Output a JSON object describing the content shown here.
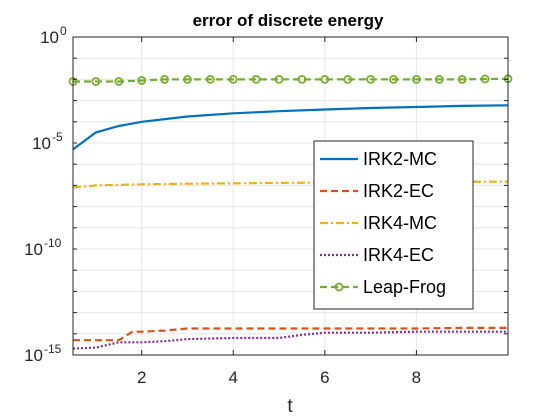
{
  "chart_data": {
    "type": "line",
    "title": "error of discrete energy",
    "xlabel": "t",
    "ylabel": "",
    "xlim": [
      0.5,
      10
    ],
    "ylim_log10": [
      -15,
      0
    ],
    "yscale": "log",
    "grid": true,
    "x_ticks": [
      "2",
      "4",
      "6",
      "8"
    ],
    "x_tick_values": [
      2,
      4,
      6,
      8
    ],
    "y_ticks": [
      {
        "base": "10",
        "exp": "0",
        "value": 0
      },
      {
        "base": "10",
        "exp": "-5",
        "value": -5
      },
      {
        "base": "10",
        "exp": "-10",
        "value": -10
      },
      {
        "base": "10",
        "exp": "-15",
        "value": -15
      }
    ],
    "legend_position": "right",
    "series": [
      {
        "name": "IRK2-MC",
        "color": "#0072BD",
        "dash": "solid",
        "marker": "none",
        "x": [
          0.5,
          1.0,
          1.5,
          2.0,
          3.0,
          4.0,
          5.0,
          6.0,
          7.0,
          8.0,
          9.0,
          10.0
        ],
        "log10_y": [
          -5.3,
          -4.5,
          -4.2,
          -4.0,
          -3.75,
          -3.6,
          -3.5,
          -3.42,
          -3.35,
          -3.3,
          -3.25,
          -3.22
        ]
      },
      {
        "name": "IRK2-EC",
        "color": "#D95319",
        "dash": "dashed",
        "marker": "none",
        "x": [
          0.5,
          1.0,
          1.5,
          1.8,
          2.0,
          2.5,
          3.0,
          4.0,
          5.0,
          6.0,
          7.0,
          8.0,
          9.0,
          10.0
        ],
        "log10_y": [
          -14.3,
          -14.3,
          -14.3,
          -13.9,
          -13.9,
          -13.85,
          -13.75,
          -13.75,
          -13.75,
          -13.75,
          -13.75,
          -13.75,
          -13.72,
          -13.72
        ]
      },
      {
        "name": "IRK4-MC",
        "color": "#EDB120",
        "dash": "dashdot",
        "marker": "none",
        "x": [
          0.5,
          1.0,
          2.0,
          3.0,
          4.0,
          5.0,
          6.0,
          7.0,
          8.0,
          9.0,
          10.0
        ],
        "log10_y": [
          -7.1,
          -7.0,
          -6.95,
          -6.92,
          -6.9,
          -6.88,
          -6.87,
          -6.85,
          -6.84,
          -6.83,
          -6.82
        ]
      },
      {
        "name": "IRK4-EC",
        "color": "#7E2F8E",
        "dash": "dotted",
        "marker": "none",
        "x": [
          0.5,
          1.0,
          1.5,
          2.0,
          2.5,
          3.0,
          4.0,
          5.0,
          5.5,
          6.0,
          7.0,
          8.0,
          9.0,
          10.0
        ],
        "log10_y": [
          -14.7,
          -14.65,
          -14.4,
          -14.4,
          -14.35,
          -14.25,
          -14.2,
          -14.2,
          -14.05,
          -13.95,
          -13.95,
          -13.9,
          -13.9,
          -13.9
        ]
      },
      {
        "name": "Leap-Frog",
        "color": "#77AC30",
        "dash": "dashed",
        "marker": "circle",
        "x": [
          0.5,
          1.0,
          1.5,
          2.0,
          2.5,
          3.0,
          3.5,
          4.0,
          4.5,
          5.0,
          5.5,
          6.0,
          6.5,
          7.0,
          7.5,
          8.0,
          8.5,
          9.0,
          9.5,
          10.0
        ],
        "log10_y": [
          -2.1,
          -2.1,
          -2.1,
          -2.05,
          -2.0,
          -2.0,
          -2.0,
          -2.0,
          -2.0,
          -2.0,
          -2.0,
          -2.0,
          -2.0,
          -2.0,
          -2.0,
          -2.0,
          -2.0,
          -2.0,
          -1.98,
          -1.97
        ]
      }
    ]
  }
}
